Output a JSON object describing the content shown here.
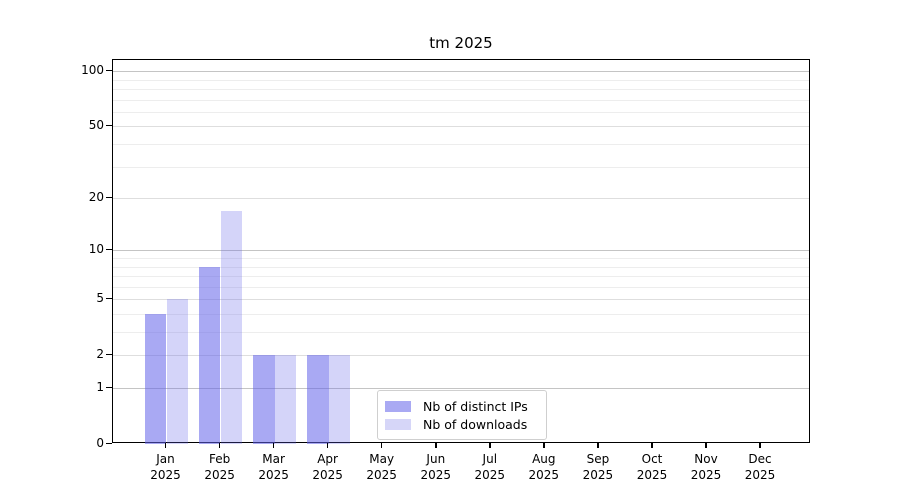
{
  "chart_data": {
    "type": "bar",
    "title": "tm 2025",
    "months": [
      "Jan",
      "Feb",
      "Mar",
      "Apr",
      "May",
      "Jun",
      "Jul",
      "Aug",
      "Sep",
      "Oct",
      "Nov",
      "Dec"
    ],
    "year": "2025",
    "series": [
      {
        "key": "distinct-ips",
        "name": "Nb of distinct IPs",
        "fill": "rgba(99,99,233,0.55)",
        "legend_color": "#a9a9f3",
        "values": [
          4,
          8,
          2,
          2,
          0,
          0,
          0,
          0,
          0,
          0,
          0,
          0
        ]
      },
      {
        "key": "downloads",
        "name": "Nb of downloads",
        "fill": "rgba(99,99,233,0.28)",
        "legend_color": "#d6d6f8",
        "values": [
          5,
          17,
          2,
          2,
          0,
          0,
          0,
          0,
          0,
          0,
          0,
          0
        ]
      }
    ],
    "yscale": "symlog",
    "ylim": [
      0,
      115
    ],
    "yticks": [
      0,
      1,
      2,
      5,
      10,
      20,
      50,
      100
    ],
    "decade_ticks": [
      1,
      10,
      100
    ],
    "minor_gridlines": [
      3,
      4,
      6,
      7,
      8,
      9,
      30,
      40,
      60,
      70,
      80,
      90
    ],
    "grid": true,
    "legend_position": "lower center",
    "colors": {
      "bar_base": "#6363e9",
      "grid_decade": "#c4c4c4",
      "grid_major": "#dedede",
      "grid_minor": "#ededed",
      "axis": "#000000"
    }
  }
}
